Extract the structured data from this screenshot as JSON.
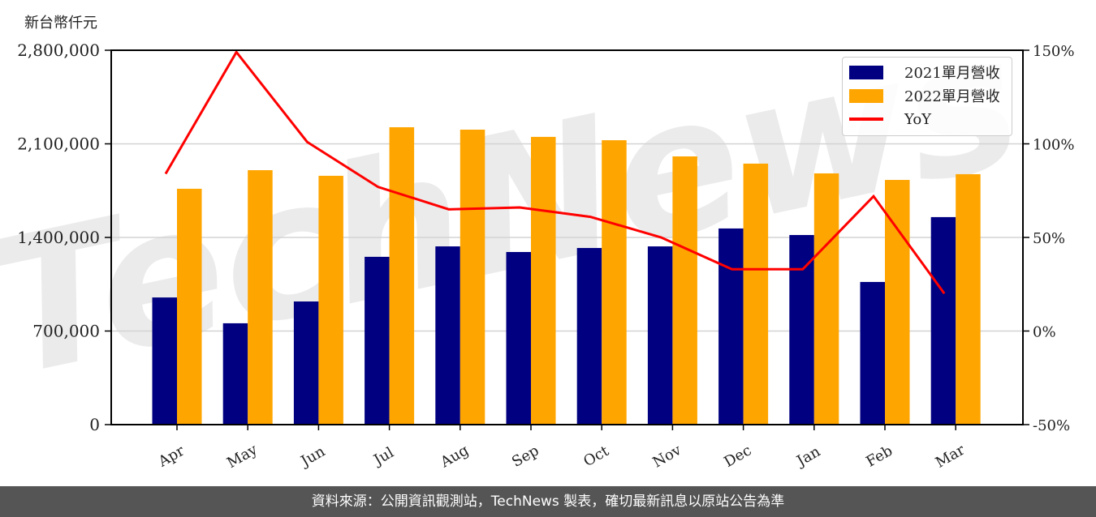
{
  "chart_data": {
    "type": "bar",
    "title": "",
    "unit_label": "新台幣仟元",
    "xlabel": "",
    "ylabel": "新台幣仟元",
    "y2label": "YoY",
    "categories": [
      "Apr",
      "May",
      "Jun",
      "Jul",
      "Aug",
      "Sep",
      "Oct",
      "Nov",
      "Dec",
      "Jan",
      "Feb",
      "Mar"
    ],
    "series": [
      {
        "name": "2021單月營收",
        "type": "bar",
        "axis": "left",
        "color": "#000080",
        "values": [
          951000,
          758000,
          921000,
          1255000,
          1333000,
          1291000,
          1321000,
          1333000,
          1467000,
          1418000,
          1067000,
          1552000
        ]
      },
      {
        "name": "2022單月營收",
        "type": "bar",
        "axis": "left",
        "color": "#FFA500",
        "values": [
          1764000,
          1903000,
          1861000,
          2224000,
          2206000,
          2152000,
          2127000,
          2006000,
          1952000,
          1879000,
          1830000,
          1873000
        ]
      },
      {
        "name": "YoY",
        "type": "line",
        "axis": "right",
        "color": "#FF0000",
        "values": [
          84,
          149,
          101,
          77,
          65,
          66,
          61,
          50,
          33,
          33,
          72,
          20
        ]
      }
    ],
    "ylim": [
      0,
      2800000
    ],
    "yticks": [
      0,
      700000,
      1400000,
      2100000,
      2800000
    ],
    "ytick_labels": [
      "0",
      "700,000",
      "1,400,000",
      "2,100,000",
      "2,800,000"
    ],
    "y2lim": [
      -50,
      150
    ],
    "y2ticks": [
      -50,
      0,
      50,
      100,
      150
    ],
    "y2tick_labels": [
      "-50%",
      "0%",
      "50%",
      "100%",
      "150%"
    ],
    "grid": true,
    "legend_position": "upper right",
    "watermark": "TechNews"
  },
  "legend": {
    "items": [
      {
        "label": "2021單月營收",
        "color": "#000080",
        "kind": "bar"
      },
      {
        "label": "2022單月營收",
        "color": "#FFA500",
        "kind": "bar"
      },
      {
        "label": "YoY",
        "color": "#FF0000",
        "kind": "line"
      }
    ]
  },
  "footer": {
    "text": "資料來源：公開資訊觀測站，TechNews 製表，確切最新訊息以原站公告為準"
  }
}
